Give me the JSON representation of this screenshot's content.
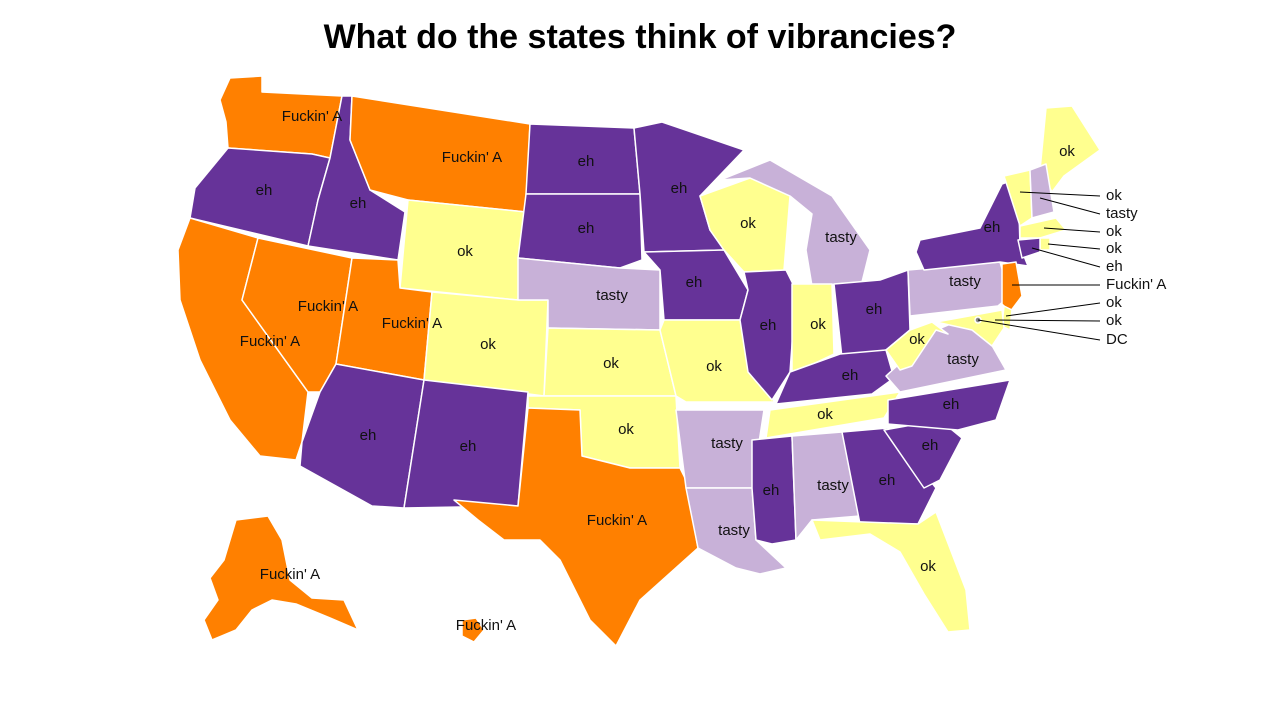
{
  "title": "What do the states think of vibrancies?",
  "colors": {
    "Fuckin' A": "#ff8000",
    "eh": "#663399",
    "tasty": "#c8b1d8",
    "ok": "#ffff8f"
  },
  "states": {
    "WA": "Fuckin' A",
    "OR": "eh",
    "CA": "Fuckin' A",
    "ID": "eh",
    "NV": "Fuckin' A",
    "MT": "Fuckin' A",
    "WY": "ok",
    "UT": "Fuckin' A",
    "AZ": "eh",
    "CO": "ok",
    "NM": "eh",
    "ND": "eh",
    "SD": "eh",
    "NE": "tasty",
    "KS": "ok",
    "OK": "ok",
    "TX": "Fuckin' A",
    "MN": "eh",
    "IA": "eh",
    "MO": "ok",
    "AR": "tasty",
    "LA": "tasty",
    "WI": "ok",
    "IL": "eh",
    "MI": "tasty",
    "IN": "ok",
    "OH": "eh",
    "KY": "eh",
    "TN": "ok",
    "MS": "eh",
    "AL": "tasty",
    "GA": "eh",
    "FL": "ok",
    "SC": "eh",
    "NC": "eh",
    "VA": "tasty",
    "WV": "ok",
    "PA": "tasty",
    "NY": "eh",
    "ME": "ok",
    "VT": "ok",
    "NH": "tasty",
    "MA": "ok",
    "RI": "ok",
    "CT": "eh",
    "NJ": "Fuckin' A",
    "DE": "ok",
    "MD": "ok",
    "DC": "DC",
    "AK": "Fuckin' A",
    "HI": "Fuckin' A"
  },
  "labels": {
    "WA": "Fuckin' A",
    "OR": "eh",
    "CA": "Fuckin' A",
    "ID": "eh",
    "NV": "Fuckin' A",
    "MT": "Fuckin' A",
    "WY": "ok",
    "UT": "Fuckin' A",
    "AZ": "eh",
    "CO": "ok",
    "NM": "eh",
    "ND": "eh",
    "SD": "eh",
    "NE": "tasty",
    "KS": "ok",
    "OK": "ok",
    "TX": "Fuckin' A",
    "MN": "eh",
    "IA": "eh",
    "MO": "ok",
    "AR": "tasty",
    "LA": "tasty",
    "WI": "ok",
    "IL": "eh",
    "MI": "tasty",
    "IN": "ok",
    "OH": "eh",
    "KY": "eh",
    "TN": "ok",
    "MS": "eh",
    "AL": "tasty",
    "GA": "eh",
    "FL": "ok",
    "SC": "eh",
    "NC": "eh",
    "VA": "tasty",
    "WV": "ok",
    "PA": "tasty",
    "NY": "eh",
    "ME": "ok",
    "AK": "Fuckin' A",
    "HI": "Fuckin' A"
  },
  "callouts": [
    {
      "state": "VT",
      "text": "ok"
    },
    {
      "state": "NH",
      "text": "tasty"
    },
    {
      "state": "MA",
      "text": "ok"
    },
    {
      "state": "RI",
      "text": "ok"
    },
    {
      "state": "CT",
      "text": "eh"
    },
    {
      "state": "NJ",
      "text": "Fuckin' A"
    },
    {
      "state": "DE",
      "text": "ok"
    },
    {
      "state": "MD",
      "text": "ok"
    },
    {
      "state": "DC",
      "text": "DC"
    }
  ]
}
